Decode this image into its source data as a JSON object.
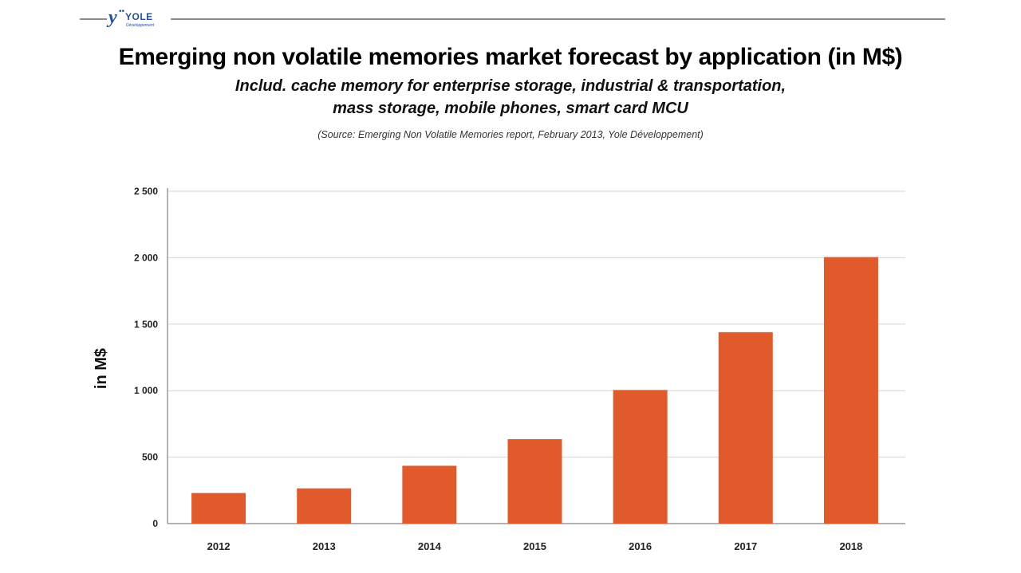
{
  "logo": {
    "name": "YOLE",
    "sub": "Développement"
  },
  "chart_data": {
    "type": "bar",
    "title": "Emerging non volatile memories market forecast by application (in M$)",
    "subtitle_lines": [
      "Includ. cache memory for enterprise storage, industrial & transportation,",
      "mass storage, mobile phones, smart card MCU"
    ],
    "source": "(Source: Emerging Non Volatile Memories report, February 2013, Yole Développement)",
    "categories": [
      "2012",
      "2013",
      "2014",
      "2015",
      "2016",
      "2017",
      "2018"
    ],
    "values": [
      230,
      265,
      435,
      635,
      1005,
      1440,
      2005
    ],
    "xlabel": "",
    "ylabel": "in M$",
    "ylim": [
      0,
      2500
    ],
    "yticks": [
      0,
      500,
      1000,
      1500,
      2000,
      2500
    ],
    "ytick_labels": [
      "0",
      "500",
      "1 000",
      "1 500",
      "2 000",
      "2 500"
    ],
    "grid": true,
    "bar_color": "#e05a2b",
    "grid_color": "#d4d4d4",
    "axis_color": "#9a9a9a"
  }
}
